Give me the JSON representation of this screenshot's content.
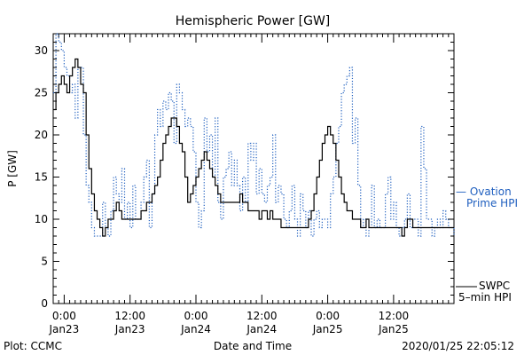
{
  "chart_data": {
    "type": "line",
    "title": "Hemispheric Power [GW]",
    "xlabel": "Date and Time",
    "ylabel": "P [GW]",
    "ylim": [
      0,
      32
    ],
    "y_ticks": [
      0,
      5,
      10,
      15,
      20,
      25,
      30
    ],
    "x_ticks": [
      {
        "t": 0,
        "time": "0:00",
        "date": "Jan23"
      },
      {
        "t": 12,
        "time": "12:00",
        "date": "Jan23"
      },
      {
        "t": 24,
        "time": "0:00",
        "date": "Jan24"
      },
      {
        "t": 36,
        "time": "12:00",
        "date": "Jan24"
      },
      {
        "t": 48,
        "time": "0:00",
        "date": "Jan25"
      },
      {
        "t": 60,
        "time": "12:00",
        "date": "Jan25"
      }
    ],
    "xlim": [
      -2,
      71
    ],
    "grid": false,
    "series": [
      {
        "name": "Ovation Prime HPI",
        "label_line1": "— Ovation",
        "label_line2": "Prime HPI",
        "style": "dotted",
        "color": "#1f5fbf",
        "points": [
          [
            -2,
            25
          ],
          [
            -1.5,
            32
          ],
          [
            -1,
            31
          ],
          [
            -0.5,
            30
          ],
          [
            0,
            28
          ],
          [
            0.5,
            27
          ],
          [
            1,
            25
          ],
          [
            1.5,
            26
          ],
          [
            2,
            22
          ],
          [
            2.5,
            28
          ],
          [
            3,
            28
          ],
          [
            3.5,
            20
          ],
          [
            4,
            14
          ],
          [
            4.5,
            12
          ],
          [
            5,
            9
          ],
          [
            5.5,
            8
          ],
          [
            6,
            8
          ],
          [
            6.5,
            8
          ],
          [
            7,
            12
          ],
          [
            7.5,
            9
          ],
          [
            8,
            8
          ],
          [
            8.5,
            11
          ],
          [
            9,
            15
          ],
          [
            9.5,
            13
          ],
          [
            10,
            12
          ],
          [
            10.5,
            16
          ],
          [
            11,
            10
          ],
          [
            11.5,
            12
          ],
          [
            12,
            9
          ],
          [
            12.5,
            14
          ],
          [
            13,
            10
          ],
          [
            13.5,
            10
          ],
          [
            14,
            12
          ],
          [
            14.5,
            15
          ],
          [
            15,
            17
          ],
          [
            15.5,
            9
          ],
          [
            16,
            13
          ],
          [
            16.5,
            20
          ],
          [
            17,
            23
          ],
          [
            17.5,
            21
          ],
          [
            18,
            24
          ],
          [
            18.5,
            23
          ],
          [
            19,
            25
          ],
          [
            19.5,
            24
          ],
          [
            20,
            19
          ],
          [
            20.5,
            26
          ],
          [
            21,
            25
          ],
          [
            21.5,
            23
          ],
          [
            22,
            21
          ],
          [
            22.5,
            22
          ],
          [
            23,
            21
          ],
          [
            23.5,
            18
          ],
          [
            24,
            12
          ],
          [
            24.5,
            9
          ],
          [
            25,
            11
          ],
          [
            25.5,
            22
          ],
          [
            26,
            18
          ],
          [
            26.5,
            20
          ],
          [
            27,
            15
          ],
          [
            27.5,
            22
          ],
          [
            28,
            12
          ],
          [
            28.5,
            10
          ],
          [
            29,
            15
          ],
          [
            29.5,
            16
          ],
          [
            30,
            18
          ],
          [
            30.5,
            14
          ],
          [
            31,
            17
          ],
          [
            31.5,
            14
          ],
          [
            32,
            11
          ],
          [
            32.5,
            15
          ],
          [
            33,
            12
          ],
          [
            33.5,
            19
          ],
          [
            34,
            17
          ],
          [
            34.5,
            19
          ],
          [
            35,
            13
          ],
          [
            35.5,
            16
          ],
          [
            36,
            13
          ],
          [
            36.5,
            12
          ],
          [
            37,
            14
          ],
          [
            37.5,
            15
          ],
          [
            38,
            20
          ],
          [
            38.5,
            12
          ],
          [
            39,
            14
          ],
          [
            39.5,
            13
          ],
          [
            40,
            10
          ],
          [
            40.5,
            9
          ],
          [
            41,
            11
          ],
          [
            41.5,
            14
          ],
          [
            42,
            10
          ],
          [
            42.5,
            8
          ],
          [
            43,
            13
          ],
          [
            43.5,
            11
          ],
          [
            44,
            9
          ],
          [
            44.5,
            11
          ],
          [
            45,
            8
          ],
          [
            45.5,
            10
          ],
          [
            46,
            11
          ],
          [
            46.5,
            9
          ],
          [
            47,
            10
          ],
          [
            47.5,
            10
          ],
          [
            48,
            9
          ],
          [
            48.5,
            13
          ],
          [
            49,
            15
          ],
          [
            49.5,
            19
          ],
          [
            50,
            21
          ],
          [
            50.5,
            25
          ],
          [
            51,
            26
          ],
          [
            51.5,
            27
          ],
          [
            52,
            28
          ],
          [
            52.5,
            19
          ],
          [
            53,
            22
          ],
          [
            53.5,
            14
          ],
          [
            54,
            9
          ],
          [
            54.5,
            10
          ],
          [
            55,
            8
          ],
          [
            55.5,
            9
          ],
          [
            56,
            14
          ],
          [
            56.5,
            9
          ],
          [
            57,
            10
          ],
          [
            57.5,
            9
          ],
          [
            58,
            9
          ],
          [
            58.5,
            13
          ],
          [
            59,
            15
          ],
          [
            59.5,
            10
          ],
          [
            60,
            12
          ],
          [
            60.5,
            9
          ],
          [
            61,
            8
          ],
          [
            61.5,
            9
          ],
          [
            62,
            10
          ],
          [
            62.5,
            13
          ],
          [
            63,
            9
          ],
          [
            63.5,
            10
          ],
          [
            64,
            10
          ],
          [
            64.5,
            8
          ],
          [
            65,
            21
          ],
          [
            65.5,
            16
          ],
          [
            66,
            10
          ],
          [
            66.5,
            10
          ],
          [
            67,
            8
          ],
          [
            67.5,
            9
          ],
          [
            68,
            10
          ],
          [
            68.5,
            9
          ],
          [
            69,
            11
          ],
          [
            69.5,
            10
          ],
          [
            70,
            9
          ],
          [
            70.5,
            9
          ],
          [
            71,
            8
          ]
        ]
      },
      {
        "name": "SWPC 5-min HPI",
        "label_line1": "SWPC",
        "label_line2": "5–min HPI",
        "style": "solid",
        "color": "#000000",
        "points": [
          [
            -2,
            23
          ],
          [
            -1.5,
            25
          ],
          [
            -1,
            26
          ],
          [
            -0.5,
            27
          ],
          [
            0,
            26
          ],
          [
            0.5,
            25
          ],
          [
            1,
            27
          ],
          [
            1.5,
            28
          ],
          [
            2,
            29
          ],
          [
            2.5,
            28
          ],
          [
            3,
            26
          ],
          [
            3.5,
            25
          ],
          [
            4,
            20
          ],
          [
            4.5,
            16
          ],
          [
            5,
            13
          ],
          [
            5.5,
            11
          ],
          [
            6,
            10
          ],
          [
            6.5,
            9
          ],
          [
            7,
            8
          ],
          [
            7.5,
            9
          ],
          [
            8,
            10
          ],
          [
            8.5,
            10
          ],
          [
            9,
            11
          ],
          [
            9.5,
            12
          ],
          [
            10,
            11
          ],
          [
            10.5,
            10
          ],
          [
            11,
            10
          ],
          [
            11.5,
            10
          ],
          [
            12,
            10
          ],
          [
            12.5,
            10
          ],
          [
            13,
            10
          ],
          [
            13.5,
            10
          ],
          [
            14,
            11
          ],
          [
            14.5,
            11
          ],
          [
            15,
            12
          ],
          [
            15.5,
            12
          ],
          [
            16,
            13
          ],
          [
            16.5,
            14
          ],
          [
            17,
            15
          ],
          [
            17.5,
            17
          ],
          [
            18,
            19
          ],
          [
            18.5,
            20
          ],
          [
            19,
            21
          ],
          [
            19.5,
            22
          ],
          [
            20,
            22
          ],
          [
            20.5,
            21
          ],
          [
            21,
            19
          ],
          [
            21.5,
            18
          ],
          [
            22,
            15
          ],
          [
            22.5,
            12
          ],
          [
            23,
            13
          ],
          [
            23.5,
            14
          ],
          [
            24,
            15
          ],
          [
            24.5,
            16
          ],
          [
            25,
            17
          ],
          [
            25.5,
            18
          ],
          [
            26,
            17
          ],
          [
            26.5,
            16
          ],
          [
            27,
            15
          ],
          [
            27.5,
            14
          ],
          [
            28,
            13
          ],
          [
            28.5,
            12
          ],
          [
            29,
            12
          ],
          [
            29.5,
            12
          ],
          [
            30,
            12
          ],
          [
            30.5,
            12
          ],
          [
            31,
            12
          ],
          [
            31.5,
            12
          ],
          [
            32,
            13
          ],
          [
            32.5,
            12
          ],
          [
            33,
            12
          ],
          [
            33.5,
            11
          ],
          [
            34,
            11
          ],
          [
            34.5,
            11
          ],
          [
            35,
            11
          ],
          [
            35.5,
            10
          ],
          [
            36,
            11
          ],
          [
            36.5,
            11
          ],
          [
            37,
            10
          ],
          [
            37.5,
            11
          ],
          [
            38,
            10
          ],
          [
            38.5,
            10
          ],
          [
            39,
            10
          ],
          [
            39.5,
            9
          ],
          [
            40,
            9
          ],
          [
            40.5,
            9
          ],
          [
            41,
            9
          ],
          [
            41.5,
            9
          ],
          [
            42,
            9
          ],
          [
            42.5,
            9
          ],
          [
            43,
            9
          ],
          [
            43.5,
            9
          ],
          [
            44,
            9
          ],
          [
            44.5,
            10
          ],
          [
            45,
            11
          ],
          [
            45.5,
            13
          ],
          [
            46,
            15
          ],
          [
            46.5,
            17
          ],
          [
            47,
            19
          ],
          [
            47.5,
            20
          ],
          [
            48,
            21
          ],
          [
            48.5,
            20
          ],
          [
            49,
            19
          ],
          [
            49.5,
            17
          ],
          [
            50,
            15
          ],
          [
            50.5,
            13
          ],
          [
            51,
            12
          ],
          [
            51.5,
            11
          ],
          [
            52,
            11
          ],
          [
            52.5,
            10
          ],
          [
            53,
            10
          ],
          [
            53.5,
            10
          ],
          [
            54,
            9
          ],
          [
            54.5,
            9
          ],
          [
            55,
            10
          ],
          [
            55.5,
            9
          ],
          [
            56,
            9
          ],
          [
            56.5,
            9
          ],
          [
            57,
            9
          ],
          [
            57.5,
            9
          ],
          [
            58,
            9
          ],
          [
            58.5,
            9
          ],
          [
            59,
            9
          ],
          [
            59.5,
            9
          ],
          [
            60,
            9
          ],
          [
            60.5,
            9
          ],
          [
            61,
            9
          ],
          [
            61.5,
            8
          ],
          [
            62,
            9
          ],
          [
            62.5,
            10
          ],
          [
            63,
            10
          ],
          [
            63.5,
            9
          ],
          [
            64,
            9
          ],
          [
            64.5,
            9
          ],
          [
            65,
            9
          ],
          [
            65.5,
            9
          ],
          [
            66,
            9
          ],
          [
            66.5,
            9
          ],
          [
            67,
            9
          ],
          [
            67.5,
            9
          ],
          [
            68,
            9
          ],
          [
            68.5,
            9
          ],
          [
            69,
            9
          ],
          [
            69.5,
            9
          ],
          [
            70,
            9
          ],
          [
            70.5,
            9
          ],
          [
            71,
            9
          ]
        ]
      }
    ]
  },
  "footer": {
    "plot_credit": "Plot: CCMC",
    "timestamp": "2020/01/25 22:05:12"
  }
}
